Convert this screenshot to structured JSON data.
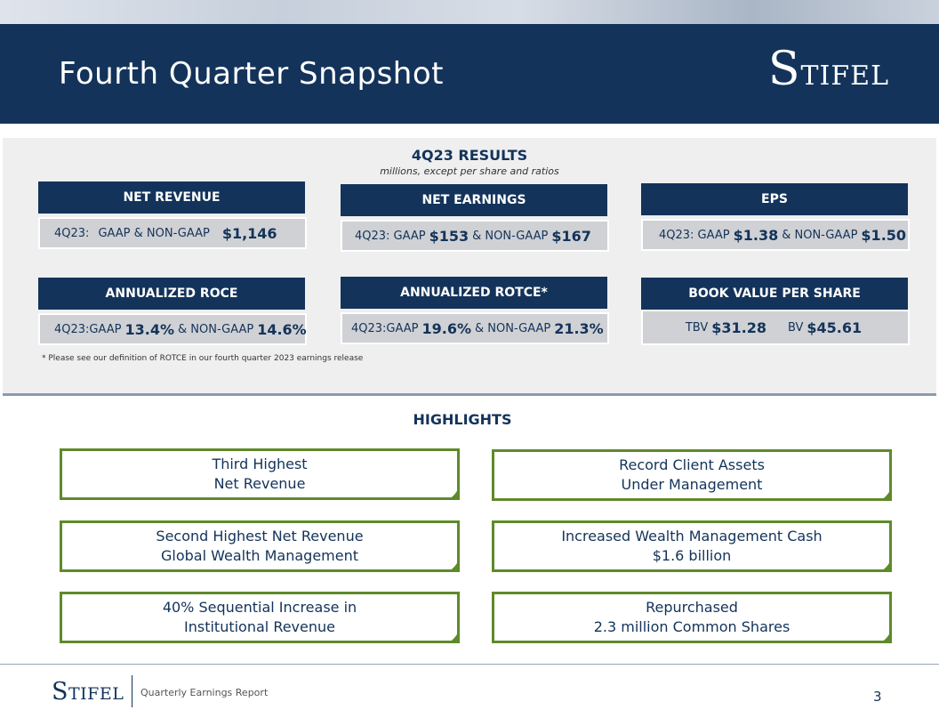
{
  "slide": {
    "title": "Fourth Quarter Snapshot",
    "page_number": "3"
  },
  "logo": {
    "first_letter": "S",
    "rest": "TIFEL"
  },
  "results": {
    "title": "4Q23 RESULTS",
    "subtitle": "millions, except per share and ratios",
    "footnote": "* Please see our definition of ROTCE in our fourth quarter 2023 earnings release",
    "net_revenue": {
      "label": "NET REVENUE",
      "prefix": "4Q23:",
      "mid": "GAAP & NON-GAAP",
      "value": "$1,146"
    },
    "net_earnings": {
      "label": "NET EARNINGS",
      "prefix": "4Q23:  GAAP",
      "gaap": "$153",
      "mid": "& NON-GAAP",
      "non_gaap": "$167"
    },
    "eps": {
      "label": "EPS",
      "prefix": "4Q23: GAAP",
      "gaap": "$1.38",
      "mid": "& NON-GAAP",
      "non_gaap": "$1.50"
    },
    "roce": {
      "label": "ANNUALIZED ROCE",
      "prefix": "4Q23:GAAP",
      "gaap": "13.4%",
      "mid": "& NON-GAAP",
      "non_gaap": "14.6%"
    },
    "rotce": {
      "label": "ANNUALIZED ROTCE*",
      "prefix": "4Q23:GAAP",
      "gaap": "19.6%",
      "mid": "&  NON-GAAP",
      "non_gaap": "21.3%"
    },
    "bvps": {
      "label": "BOOK VALUE PER SHARE",
      "tbv_label": "TBV",
      "tbv": "$31.28",
      "bv_label": "BV",
      "bv": "$45.61"
    }
  },
  "highlights": {
    "title": "HIGHLIGHTS",
    "items": [
      {
        "line1": "Third Highest",
        "line2": "Net Revenue"
      },
      {
        "line1": "Record Client Assets",
        "line2": "Under Management"
      },
      {
        "line1": "Second Highest Net Revenue",
        "line2": "Global Wealth Management"
      },
      {
        "line1": "Increased Wealth Management Cash",
        "line2": "$1.6 billion"
      },
      {
        "line1": "40% Sequential Increase in",
        "line2": "Institutional Revenue"
      },
      {
        "line1": "Repurchased",
        "line2": "2.3 million Common Shares"
      }
    ]
  },
  "footer": {
    "text": "Quarterly Earnings Report"
  },
  "colors": {
    "navy": "#13335a",
    "green": "#5e8a2a",
    "panel": "#efeff0",
    "value_bg": "#d0d1d4"
  }
}
